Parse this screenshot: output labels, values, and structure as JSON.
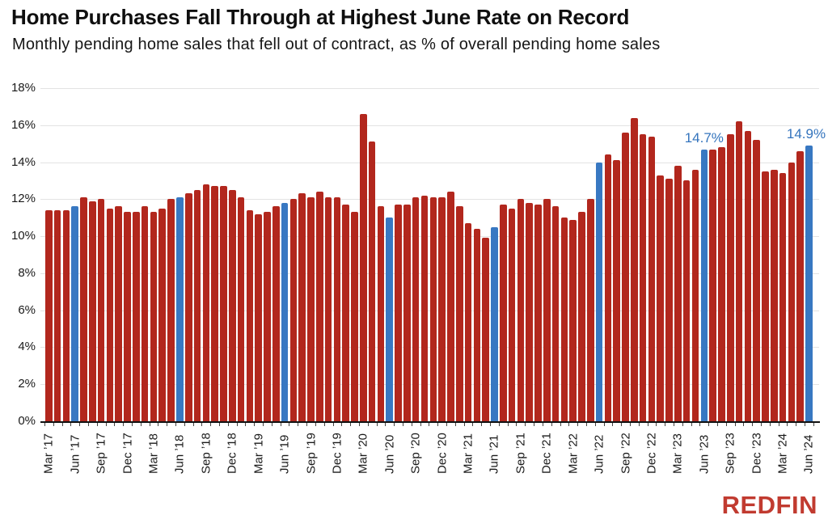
{
  "header": {
    "title": "Home Purchases Fall Through at Highest June Rate on Record",
    "subtitle": "Monthly pending home sales that fell out of contract, as % of overall pending home sales"
  },
  "footer": {
    "brand": "REDFIN"
  },
  "colors": {
    "bar": "#b2271d",
    "highlight": "#3878c2",
    "annotation": "#3474bd",
    "gridline": "#e3e3e3",
    "axis": "#111111"
  },
  "chart_data": {
    "type": "bar",
    "title": "Home Purchases Fall Through at Highest June Rate on Record",
    "subtitle": "Monthly pending home sales that fell out of contract, as % of overall pending home sales",
    "ylim": [
      0,
      18
    ],
    "y_tick_step": 2,
    "y_tick_suffix": "%",
    "x_tick_every": 3,
    "grid": true,
    "highlight_prefix": "Jun",
    "x": [
      "Mar ’17",
      "Apr ’17",
      "May ’17",
      "Jun ’17",
      "Jul ’17",
      "Aug ’17",
      "Sep ’17",
      "Oct ’17",
      "Nov ’17",
      "Dec ’17",
      "Jan ’18",
      "Feb ’18",
      "Mar ’18",
      "Apr ’18",
      "May ’18",
      "Jun ’18",
      "Jul ’18",
      "Aug ’18",
      "Sep ’18",
      "Oct ’18",
      "Nov ’18",
      "Dec ’18",
      "Jan ’19",
      "Feb ’19",
      "Mar ’19",
      "Apr ’19",
      "May ’19",
      "Jun ’19",
      "Jul ’19",
      "Aug ’19",
      "Sep ’19",
      "Oct ’19",
      "Nov ’19",
      "Dec ’19",
      "Jan ’20",
      "Feb ’20",
      "Mar ’20",
      "Apr ’20",
      "May ’20",
      "Jun ’20",
      "Jul ’20",
      "Aug ’20",
      "Sep ’20",
      "Oct ’20",
      "Nov ’20",
      "Dec ’20",
      "Jan ’21",
      "Feb ’21",
      "Mar ’21",
      "Apr ’21",
      "May ’21",
      "Jun ’21",
      "Jul ’21",
      "Aug ’21",
      "Sep ’21",
      "Oct ’21",
      "Nov ’21",
      "Dec ’21",
      "Jan ’22",
      "Feb ’22",
      "Mar ’22",
      "Apr ’22",
      "May ’22",
      "Jun ’22",
      "Jul ’22",
      "Aug ’22",
      "Sep ’22",
      "Oct ’22",
      "Nov ’22",
      "Dec ’22",
      "Jan ’23",
      "Feb ’23",
      "Mar ’23",
      "Apr ’23",
      "May ’23",
      "Jun ’23",
      "Jul ’23",
      "Aug ’23",
      "Sep ’23",
      "Oct ’23",
      "Nov ’23",
      "Dec ’23",
      "Jan ’24",
      "Feb ’24",
      "Mar ’24",
      "Apr ’24",
      "May ’24",
      "Jun ’24"
    ],
    "values": [
      11.4,
      11.4,
      11.4,
      11.6,
      12.1,
      11.9,
      12.0,
      11.5,
      11.6,
      11.3,
      11.3,
      11.6,
      11.3,
      11.5,
      12.0,
      12.1,
      12.3,
      12.5,
      12.8,
      12.7,
      12.7,
      12.5,
      12.1,
      11.4,
      11.2,
      11.3,
      11.6,
      11.8,
      12.0,
      12.3,
      12.1,
      12.4,
      12.1,
      12.1,
      11.7,
      11.3,
      16.6,
      15.1,
      11.6,
      11.0,
      11.7,
      11.7,
      12.1,
      12.2,
      12.1,
      12.1,
      12.4,
      11.6,
      10.7,
      10.4,
      9.9,
      10.5,
      11.7,
      11.5,
      12.0,
      11.8,
      11.7,
      12.0,
      11.6,
      11.0,
      10.9,
      11.3,
      12.0,
      14.0,
      14.4,
      14.1,
      15.6,
      16.4,
      15.5,
      15.4,
      13.3,
      13.1,
      13.8,
      13.0,
      13.6,
      14.7,
      14.7,
      14.8,
      15.5,
      16.2,
      15.7,
      15.2,
      13.5,
      13.6,
      13.4,
      14.0,
      14.6,
      14.9
    ],
    "annotations": [
      {
        "label": "14.7%",
        "x": "Jun ’23"
      },
      {
        "label": "14.9%",
        "x": "Jun ’24"
      }
    ]
  }
}
